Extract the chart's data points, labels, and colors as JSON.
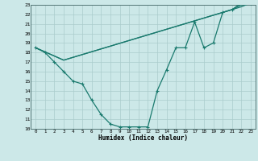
{
  "xlabel": "Humidex (Indice chaleur)",
  "bg_color": "#cce8e8",
  "grid_color": "#aacccc",
  "line_color": "#1a7a6e",
  "xlim": [
    -0.5,
    23.5
  ],
  "ylim": [
    10,
    23
  ],
  "xticks": [
    0,
    1,
    2,
    3,
    4,
    5,
    6,
    7,
    8,
    9,
    10,
    11,
    12,
    13,
    14,
    15,
    16,
    17,
    18,
    19,
    20,
    21,
    22,
    23
  ],
  "yticks": [
    10,
    11,
    12,
    13,
    14,
    15,
    16,
    17,
    18,
    19,
    20,
    21,
    22,
    23
  ],
  "line1_x": [
    0,
    1,
    2,
    3,
    4,
    5,
    6,
    7,
    8,
    9,
    10,
    11,
    12,
    13,
    14,
    15,
    16,
    17,
    18,
    19,
    20,
    21,
    22,
    23
  ],
  "line1_y": [
    18.5,
    18.0,
    17.0,
    16.0,
    15.0,
    14.7,
    13.0,
    11.5,
    10.5,
    10.2,
    10.2,
    10.2,
    10.2,
    14.0,
    16.2,
    18.5,
    18.5,
    21.2,
    18.5,
    19.0,
    22.2,
    22.5,
    23.2,
    23.2
  ],
  "line2_x": [
    0,
    3,
    21,
    22,
    23
  ],
  "line2_y": [
    18.5,
    17.2,
    22.5,
    22.8,
    23.2
  ],
  "line3_x": [
    0,
    3,
    21,
    22,
    23
  ],
  "line3_y": [
    18.5,
    17.2,
    22.5,
    23.0,
    23.2
  ]
}
